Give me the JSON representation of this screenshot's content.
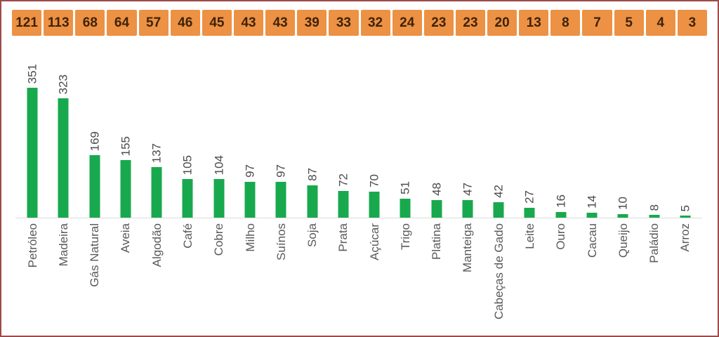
{
  "chart_data": {
    "type": "bar",
    "title": "",
    "xlabel": "",
    "ylabel": "",
    "ylim": [
      0,
      351
    ],
    "grid": false,
    "legend": "none",
    "header_values": [
      121,
      113,
      68,
      64,
      57,
      46,
      45,
      43,
      43,
      39,
      33,
      32,
      24,
      23,
      23,
      20,
      13,
      8,
      7,
      5,
      4,
      3
    ],
    "categories": [
      "Petróleo",
      "Madeira",
      "Gás Natural",
      "Aveia",
      "Algodão",
      "Café",
      "Cobre",
      "Milho",
      "Suínos",
      "Soja",
      "Prata",
      "Açúcar",
      "Trigo",
      "Platina",
      "Manteiga",
      "Cabeças de Gado",
      "Leite",
      "Ouro",
      "Cacau",
      "Queijo",
      "Paládio",
      "Arroz"
    ],
    "values": [
      351,
      323,
      169,
      155,
      137,
      105,
      104,
      97,
      97,
      87,
      72,
      70,
      51,
      48,
      47,
      42,
      27,
      16,
      14,
      10,
      8,
      5
    ],
    "value_labels_rotated": true,
    "category_labels_rotated": true
  },
  "colors": {
    "bar": "#18A94E",
    "header_cell_bg": "#ED9144",
    "header_cell_text": "#3E2308",
    "value_label": "#4A4A4A",
    "category_label": "#595959",
    "axis_line": "#DCDCDC",
    "frame_border": "#9C4A4A",
    "background": "#FFFFFF"
  }
}
